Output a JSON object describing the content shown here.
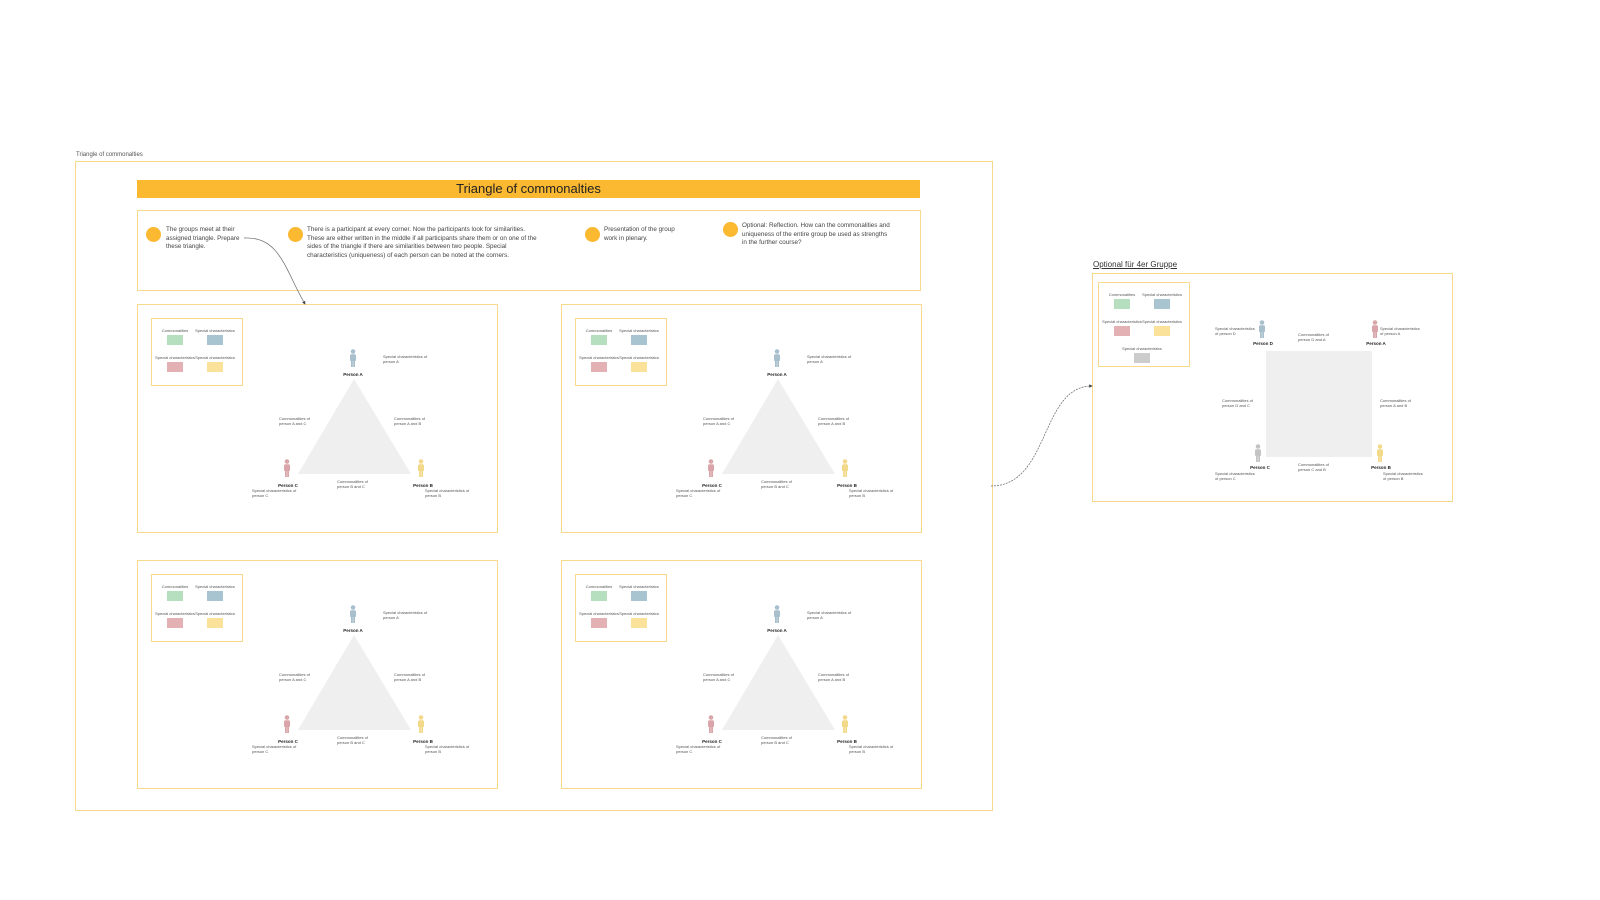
{
  "board": {
    "label": "Triangle of commonalties",
    "title": "Triangle of commonalties",
    "accent": "#fbb831"
  },
  "steps": [
    "The groups meet at their assigned triangle. Prepare these triangle.",
    "There is a participant at every corner. Now the participants look for similarities. These are either written in the middle if all participants share them or on one of the sides of the triangle if there are similarities between two people. Special characteristics (uniqueness) of each person can be noted at the corners.",
    "Presentation of the group work in plenary.",
    "Optional: Reflection. How can the commonalities and uniqueness of the entire group be used as strengths in the further course?"
  ],
  "legend": {
    "items": [
      {
        "label": "Commonalities",
        "color": "#b5dfbf"
      },
      {
        "label": "Special characteristics",
        "color": "#a9c4d1"
      },
      {
        "label": "Special characteristics",
        "color": "#e3b0b3"
      },
      {
        "label": "Special characteristics",
        "color": "#fbe29a"
      }
    ]
  },
  "triangle": {
    "persons": [
      {
        "name": "Person A",
        "color": "#a9bfcc",
        "special": "Special characteristics of person A"
      },
      {
        "name": "Person C",
        "color": "#d9a5a8",
        "special": "Special characteristics of person C"
      },
      {
        "name": "Person B",
        "color": "#f3d98a",
        "special": "Special characteristics of person B"
      }
    ],
    "edges": [
      "Commonalities of person A and C",
      "Commonalities of person A and B",
      "Commonalities of person B and C"
    ]
  },
  "optional": {
    "label": "Optional für 4er Gruppe",
    "legend": [
      {
        "label": "Commonalities",
        "color": "#b5dfbf"
      },
      {
        "label": "Special characteristics",
        "color": "#a9c4d1"
      },
      {
        "label": "Special characteristics",
        "color": "#e3b0b3"
      },
      {
        "label": "Special characteristics",
        "color": "#fbe29a"
      },
      {
        "label": "Special characteristics",
        "color": "#cccccc"
      }
    ],
    "persons": [
      {
        "name": "Person D",
        "color": "#a9bfcc",
        "special": "Special characteristics of person D"
      },
      {
        "name": "Person A",
        "color": "#d9a5a8",
        "special": "Special characteristics of person A"
      },
      {
        "name": "Person C",
        "color": "#c4c4c4",
        "special": "Special characteristics of person C"
      },
      {
        "name": "Person B",
        "color": "#f3d98a",
        "special": "Special characteristics of person B"
      }
    ],
    "edges": [
      "Commonalities of person D and A",
      "Commonalities of person D and C",
      "Commonalities of person A and B",
      "Commonalities of person C and B"
    ]
  }
}
